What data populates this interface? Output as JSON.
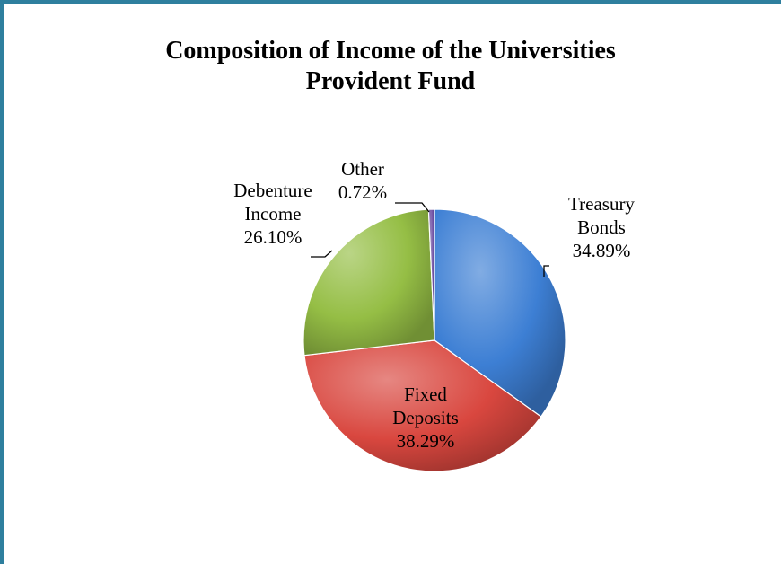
{
  "chart_data": {
    "type": "pie",
    "title": "Composition of Income of the Universities Provident Fund",
    "title_lines": [
      "Composition of Income of the Universities",
      "Provident Fund"
    ],
    "slices": [
      {
        "label_lines": [
          "Treasury",
          "Bonds"
        ],
        "value": 34.89,
        "value_label": "34.89%",
        "color": "#3d7fd4"
      },
      {
        "label_lines": [
          "Fixed",
          "Deposits"
        ],
        "value": 38.29,
        "value_label": "38.29%",
        "color": "#d9473f"
      },
      {
        "label_lines": [
          "Debenture",
          "Income"
        ],
        "value": 26.1,
        "value_label": "26.10%",
        "color": "#95be45"
      },
      {
        "label_lines": [
          "Other"
        ],
        "value": 0.72,
        "value_label": "0.72%",
        "color": "#6e4fa3"
      }
    ],
    "legend": "none",
    "style": "3d-shaded"
  },
  "frame": {
    "border_color": "#2e7f9e"
  }
}
